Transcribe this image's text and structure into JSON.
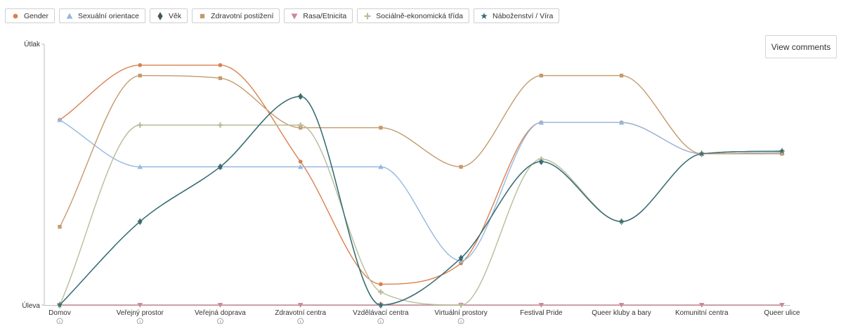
{
  "legend": [
    {
      "label": "Gender",
      "color": "#d9814f",
      "marker": "circle"
    },
    {
      "label": "Sexuální orientace",
      "color": "#96b9df",
      "marker": "triangle"
    },
    {
      "label": "Věk",
      "color": "#3f5f45",
      "marker": "diamond"
    },
    {
      "label": "Zdravotní postižení",
      "color": "#c49a6c",
      "marker": "square"
    },
    {
      "label": "Rasa/Etnicita",
      "color": "#c98a96",
      "marker": "triangle-down"
    },
    {
      "label": "Sociálně-ekonomická třída",
      "color": "#b9bc98",
      "marker": "plus"
    },
    {
      "label": "Náboženství / Víra",
      "color": "#356e79",
      "marker": "star"
    }
  ],
  "view_comments_label": "View comments",
  "chart_data": {
    "type": "line",
    "x": [
      "Domov",
      "Veřejný prostor",
      "Veřejná doprava",
      "Zdravotní centra",
      "Vzdělávací centra",
      "Virtuální prostory",
      "Festival Pride",
      "Queer kluby a bary",
      "Komunitní centra",
      "Queer ulice"
    ],
    "info_icon_count": 6,
    "y_tick_labels": {
      "top": "Útlak",
      "bottom": "Úleva"
    },
    "ylim": [
      0,
      100
    ],
    "grid": false,
    "legend_position": "top-left",
    "series": [
      {
        "name": "Gender",
        "color": "#d9814f",
        "marker": "circle",
        "values": [
          71,
          92,
          92,
          55,
          8,
          16,
          70,
          70,
          58,
          58.5
        ]
      },
      {
        "name": "Sexuální orientace",
        "color": "#96b9df",
        "marker": "triangle",
        "values": [
          71,
          53,
          53,
          53,
          53,
          17,
          70,
          70,
          58,
          58.5
        ]
      },
      {
        "name": "Věk",
        "color": "#3f5f45",
        "marker": "diamond",
        "values": [
          0,
          32,
          53,
          80,
          0,
          18,
          55,
          32,
          58,
          59
        ]
      },
      {
        "name": "Zdravotní postižení",
        "color": "#c49a6c",
        "marker": "square",
        "values": [
          30,
          88,
          87,
          68,
          68,
          53,
          88,
          88,
          58,
          58
        ]
      },
      {
        "name": "Rasa/Etnicita",
        "color": "#c98a96",
        "marker": "triangle-down",
        "values": [
          0,
          0,
          0,
          0,
          0,
          0,
          0,
          0,
          0,
          0
        ]
      },
      {
        "name": "Sociálně-ekonomická třída",
        "color": "#b9bc98",
        "marker": "plus",
        "values": [
          0,
          69,
          69,
          69,
          5,
          0,
          56,
          32,
          58,
          59
        ]
      },
      {
        "name": "Náboženství / Víra",
        "color": "#356e79",
        "marker": "star",
        "values": [
          0,
          32,
          53,
          80,
          0,
          18,
          55,
          32,
          58,
          59
        ]
      }
    ]
  }
}
